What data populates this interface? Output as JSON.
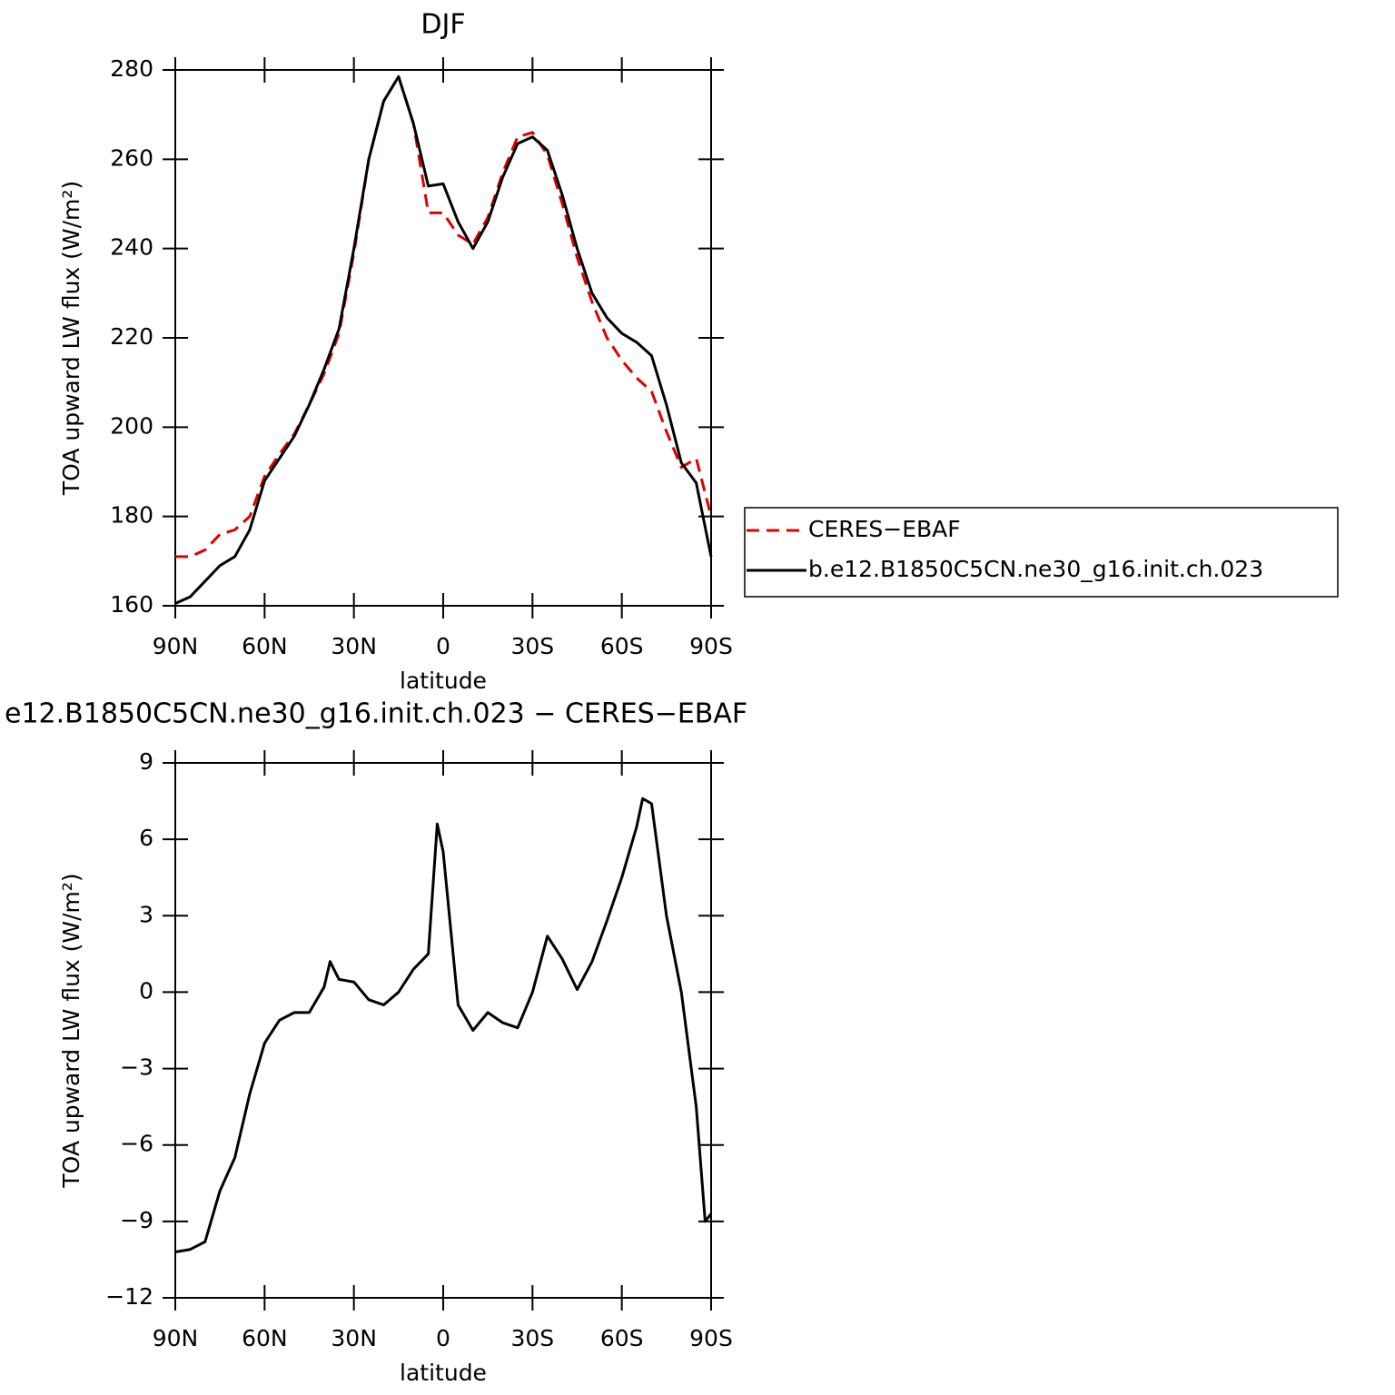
{
  "chart_data": [
    {
      "type": "line",
      "title": "DJF",
      "xlabel": "latitude",
      "ylabel": "TOA upward LW flux (W/m²)",
      "x": [
        90,
        85,
        80,
        75,
        70,
        65,
        60,
        55,
        50,
        45,
        40,
        35,
        30,
        25,
        20,
        15,
        10,
        5,
        0,
        -5,
        -10,
        -15,
        -20,
        -25,
        -30,
        -35,
        -40,
        -45,
        -50,
        -55,
        -60,
        -65,
        -70,
        -75,
        -80,
        -85,
        -90
      ],
      "series": [
        {
          "name": "CERES−EBAF",
          "color": "#e00000",
          "dashed": true,
          "values": [
            171,
            171,
            172.5,
            176,
            177,
            180,
            189,
            194,
            198.5,
            205,
            212,
            221,
            239,
            260,
            273,
            278.5,
            268,
            248,
            248,
            243,
            241,
            247,
            257,
            265,
            266,
            261,
            250,
            238,
            228,
            220,
            215,
            211,
            208,
            199,
            191,
            193,
            180
          ]
        },
        {
          "name": "b.e12.B1850C5CN.ne30_g16.init.ch.023",
          "color": "#000000",
          "dashed": false,
          "values": [
            160.5,
            162,
            165.5,
            169,
            171,
            177,
            188,
            193,
            198,
            205,
            213,
            222,
            240,
            260,
            273,
            278.5,
            268,
            254,
            254.5,
            246,
            240,
            246,
            256,
            263.5,
            265,
            262,
            252,
            240,
            230,
            224.5,
            221,
            219,
            216,
            205,
            192,
            187.5,
            171
          ]
        }
      ],
      "xlim": [
        90,
        -90
      ],
      "xticks": [
        {
          "value": 90,
          "label": "90N"
        },
        {
          "value": 60,
          "label": "60N"
        },
        {
          "value": 30,
          "label": "30N"
        },
        0,
        {
          "value": -30,
          "label": "30S"
        },
        {
          "value": -60,
          "label": "60S"
        },
        {
          "value": -90,
          "label": "90S"
        }
      ],
      "ylim": [
        160,
        280
      ],
      "yticks": [
        160,
        180,
        200,
        220,
        240,
        260,
        280
      ],
      "legend": "outside-right"
    },
    {
      "type": "line",
      "title": "e12.B1850C5CN.ne30_g16.init.ch.023 − CERES−EBAF",
      "xlabel": "latitude",
      "ylabel": "TOA upward LW flux (W/m²)",
      "x": [
        90,
        85,
        80,
        75,
        70,
        65,
        60,
        55,
        50,
        45,
        40,
        38,
        35,
        30,
        25,
        20,
        15,
        10,
        5,
        2,
        0,
        -5,
        -10,
        -15,
        -20,
        -25,
        -30,
        -35,
        -40,
        -45,
        -50,
        -55,
        -60,
        -65,
        -67,
        -70,
        -75,
        -80,
        -85,
        -88,
        -90
      ],
      "series": [
        {
          "color": "#000000",
          "dashed": false,
          "values": [
            -10.2,
            -10.1,
            -9.8,
            -7.8,
            -6.5,
            -4,
            -2,
            -1.1,
            -0.8,
            -0.8,
            0.2,
            1.2,
            0.5,
            0.4,
            -0.3,
            -0.5,
            0,
            0.9,
            1.5,
            6.6,
            5.5,
            -0.5,
            -1.5,
            -0.8,
            -1.2,
            -1.4,
            0,
            2.2,
            1.3,
            0.1,
            1.2,
            2.8,
            4.5,
            6.5,
            7.6,
            7.4,
            3,
            0,
            -4.5,
            -9,
            -8.7
          ]
        }
      ],
      "xlim": [
        90,
        -90
      ],
      "xticks": [
        {
          "value": 90,
          "label": "90N"
        },
        {
          "value": 60,
          "label": "60N"
        },
        {
          "value": 30,
          "label": "30N"
        },
        0,
        {
          "value": -30,
          "label": "30S"
        },
        {
          "value": -60,
          "label": "60S"
        },
        {
          "value": -90,
          "label": "90S"
        }
      ],
      "ylim": [
        -12,
        9
      ],
      "yticks": [
        {
          "value": -12,
          "label": "−12"
        },
        {
          "value": -9,
          "label": "−9"
        },
        {
          "value": -6,
          "label": "−6"
        },
        {
          "value": -3,
          "label": "−3"
        },
        0,
        3,
        6,
        9
      ]
    }
  ]
}
